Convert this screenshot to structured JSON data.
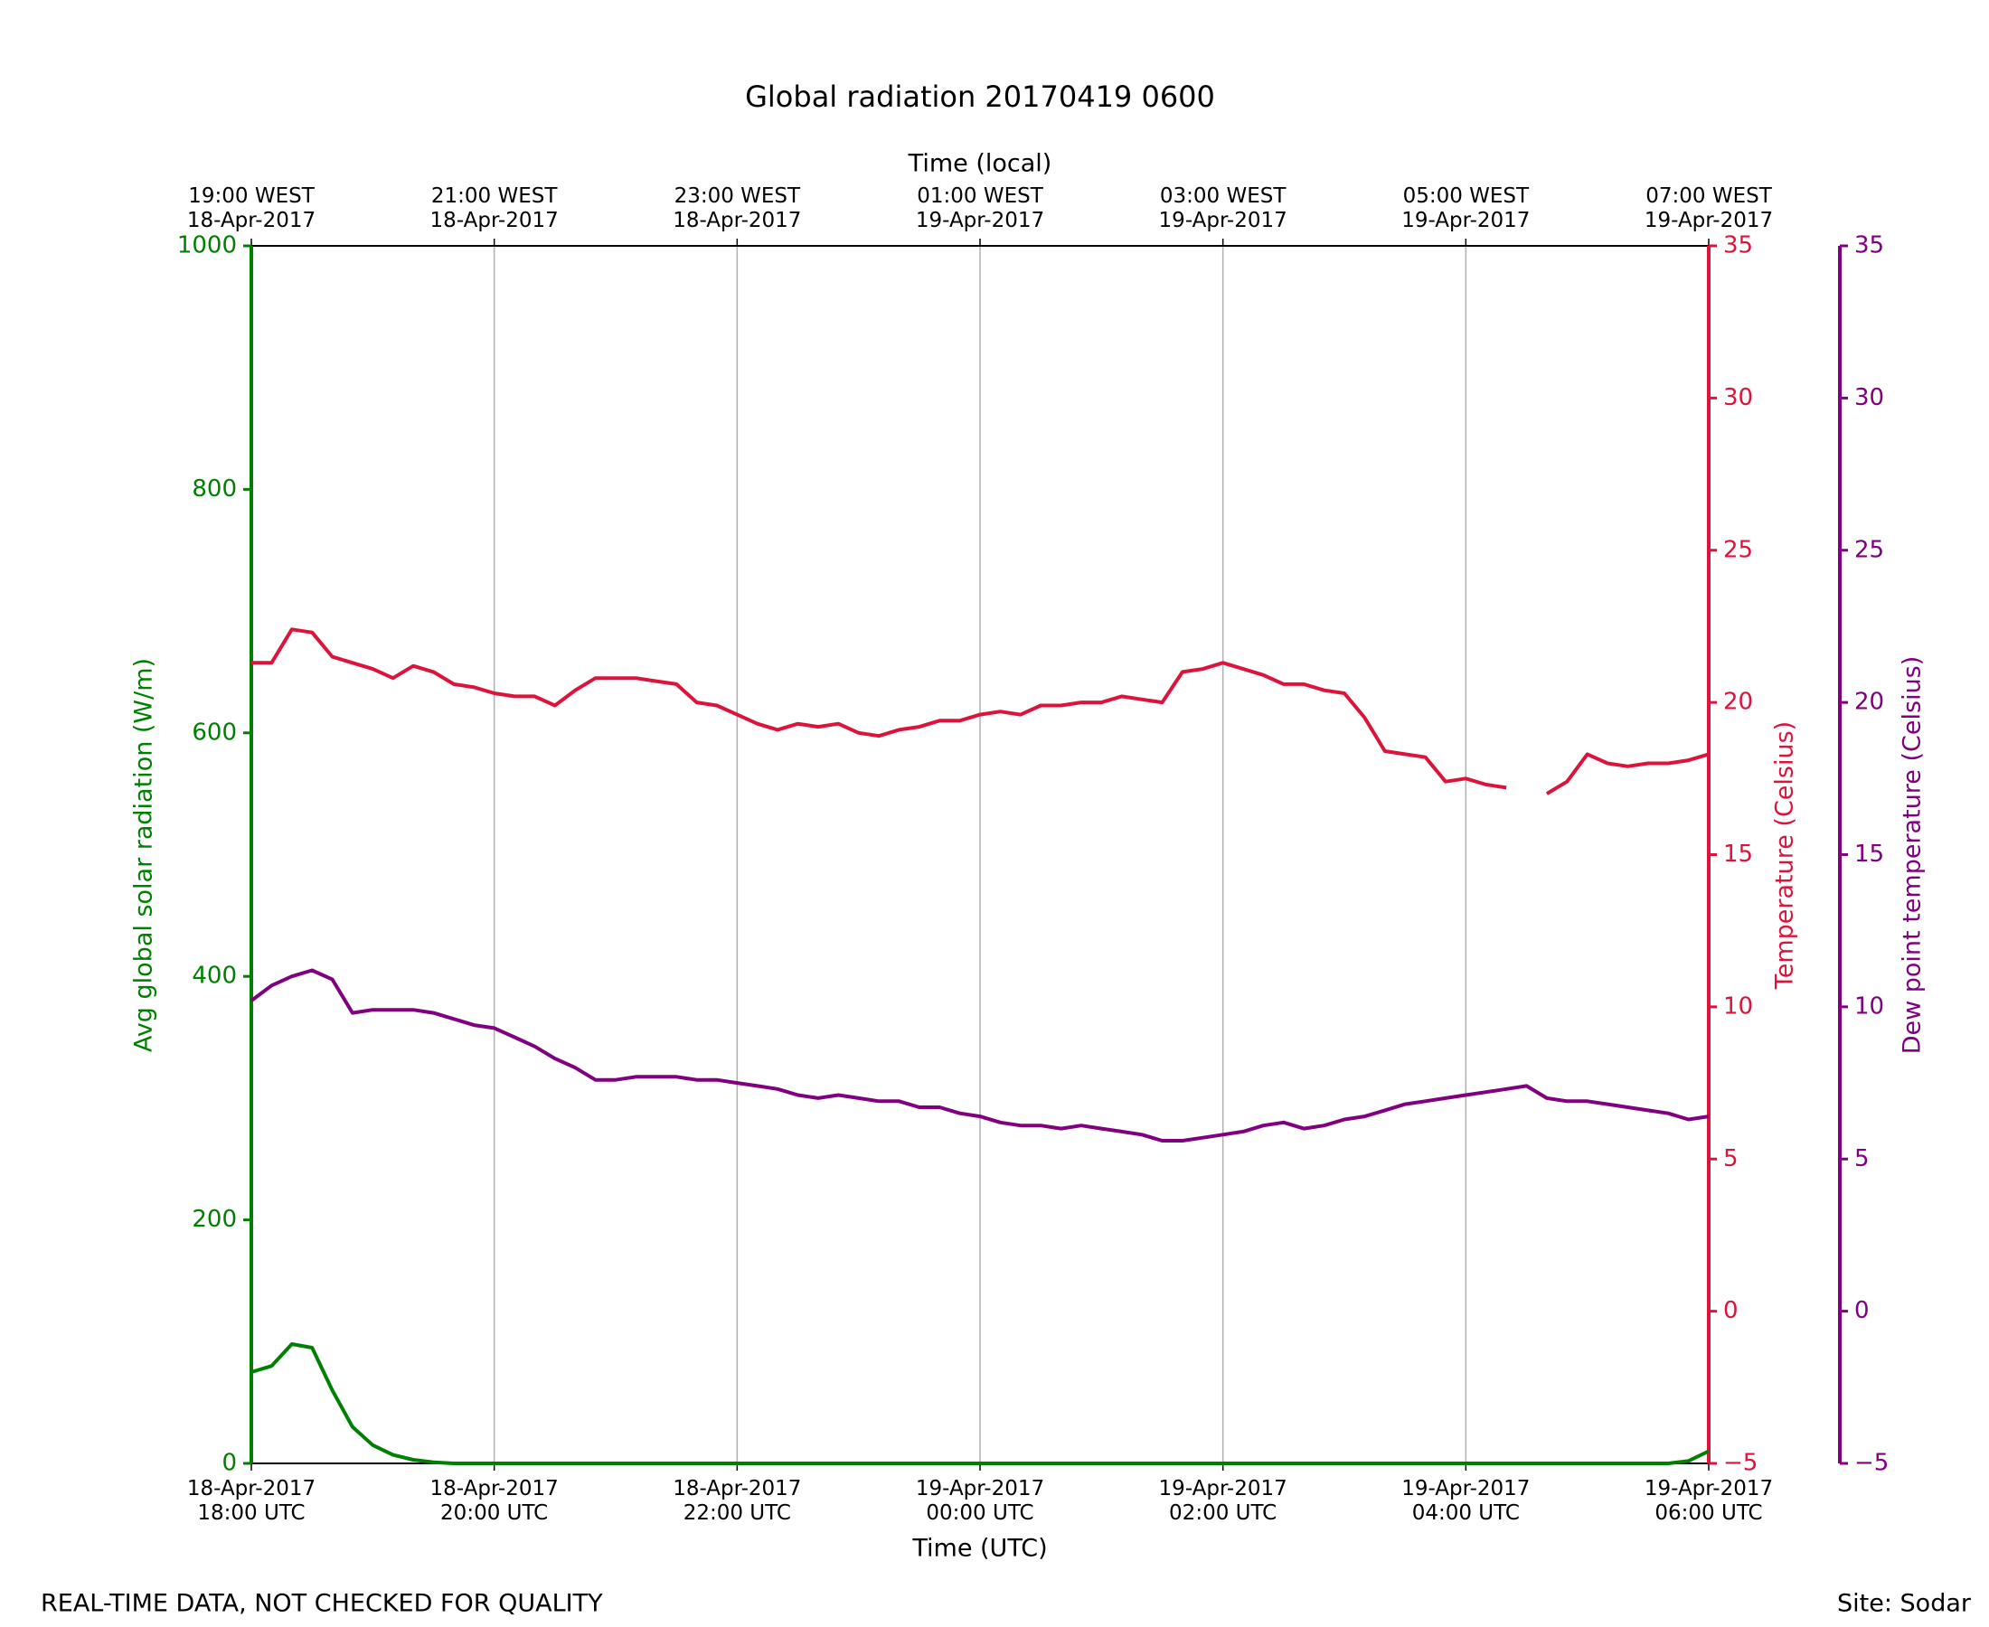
{
  "chart_data": {
    "type": "line",
    "title": "Global radiation 20170419 0600",
    "xlabel": "Time (UTC)",
    "x2label": "Time (local)",
    "ylabel": "Avg global solar radiation (W/m)",
    "y2label": "Temperature (Celsius)",
    "y3label": "Dew point temperature (Celsius)",
    "footer_left": "REAL-TIME DATA, NOT CHECKED FOR QUALITY",
    "footer_right": "Site: Sodar",
    "grid": true,
    "xlim": [
      "2017-04-18 18:00",
      "2017-04-19 06:00"
    ],
    "xticks": [
      {
        "value": "2017-04-18 18:00",
        "label": "18-Apr-2017\n18:00 UTC"
      },
      {
        "value": "2017-04-18 20:00",
        "label": "18-Apr-2017\n20:00 UTC"
      },
      {
        "value": "2017-04-18 22:00",
        "label": "18-Apr-2017\n22:00 UTC"
      },
      {
        "value": "2017-04-19 00:00",
        "label": "19-Apr-2017\n00:00 UTC"
      },
      {
        "value": "2017-04-19 02:00",
        "label": "19-Apr-2017\n02:00 UTC"
      },
      {
        "value": "2017-04-19 04:00",
        "label": "19-Apr-2017\n04:00 UTC"
      },
      {
        "value": "2017-04-19 06:00",
        "label": "19-Apr-2017\n06:00 UTC"
      }
    ],
    "x2ticks": [
      {
        "value": "2017-04-18 18:00",
        "label": "19:00 WEST\n18-Apr-2017"
      },
      {
        "value": "2017-04-18 20:00",
        "label": "21:00 WEST\n18-Apr-2017"
      },
      {
        "value": "2017-04-18 22:00",
        "label": "23:00 WEST\n18-Apr-2017"
      },
      {
        "value": "2017-04-19 00:00",
        "label": "01:00 WEST\n19-Apr-2017"
      },
      {
        "value": "2017-04-19 02:00",
        "label": "03:00 WEST\n19-Apr-2017"
      },
      {
        "value": "2017-04-19 04:00",
        "label": "05:00 WEST\n19-Apr-2017"
      },
      {
        "value": "2017-04-19 06:00",
        "label": "07:00 WEST\n19-Apr-2017"
      }
    ],
    "ylim": [
      0,
      1000
    ],
    "yticks": [
      0,
      200,
      400,
      600,
      800,
      1000
    ],
    "y2lim": [
      -5,
      35
    ],
    "y2ticks": [
      {
        "value": -5,
        "label": "−5"
      },
      0,
      5,
      10,
      15,
      20,
      25,
      30,
      35
    ],
    "y3lim": [
      -5,
      35
    ],
    "y3ticks": [
      {
        "value": -5,
        "label": "−5"
      },
      0,
      5,
      10,
      15,
      20,
      25,
      30,
      35
    ],
    "x": [
      "2017-04-18 18:00",
      "2017-04-18 18:10",
      "2017-04-18 18:20",
      "2017-04-18 18:30",
      "2017-04-18 18:40",
      "2017-04-18 18:50",
      "2017-04-18 19:00",
      "2017-04-18 19:10",
      "2017-04-18 19:20",
      "2017-04-18 19:30",
      "2017-04-18 19:40",
      "2017-04-18 19:50",
      "2017-04-18 20:00",
      "2017-04-18 20:10",
      "2017-04-18 20:20",
      "2017-04-18 20:30",
      "2017-04-18 20:40",
      "2017-04-18 20:50",
      "2017-04-18 21:00",
      "2017-04-18 21:10",
      "2017-04-18 21:20",
      "2017-04-18 21:30",
      "2017-04-18 21:40",
      "2017-04-18 21:50",
      "2017-04-18 22:00",
      "2017-04-18 22:10",
      "2017-04-18 22:20",
      "2017-04-18 22:30",
      "2017-04-18 22:40",
      "2017-04-18 22:50",
      "2017-04-18 23:00",
      "2017-04-18 23:10",
      "2017-04-18 23:20",
      "2017-04-18 23:30",
      "2017-04-18 23:40",
      "2017-04-18 23:50",
      "2017-04-19 00:00",
      "2017-04-19 00:10",
      "2017-04-19 00:20",
      "2017-04-19 00:30",
      "2017-04-19 00:40",
      "2017-04-19 00:50",
      "2017-04-19 01:00",
      "2017-04-19 01:10",
      "2017-04-19 01:20",
      "2017-04-19 01:30",
      "2017-04-19 01:40",
      "2017-04-19 01:50",
      "2017-04-19 02:00",
      "2017-04-19 02:10",
      "2017-04-19 02:20",
      "2017-04-19 02:30",
      "2017-04-19 02:40",
      "2017-04-19 02:50",
      "2017-04-19 03:00",
      "2017-04-19 03:10",
      "2017-04-19 03:20",
      "2017-04-19 03:30",
      "2017-04-19 03:40",
      "2017-04-19 03:50",
      "2017-04-19 04:00",
      "2017-04-19 04:10",
      "2017-04-19 04:20",
      "2017-04-19 04:30",
      "2017-04-19 04:40",
      "2017-04-19 04:50",
      "2017-04-19 05:00",
      "2017-04-19 05:10",
      "2017-04-19 05:20",
      "2017-04-19 05:30",
      "2017-04-19 05:40",
      "2017-04-19 05:50",
      "2017-04-19 06:00"
    ],
    "series": [
      {
        "name": "Avg global solar radiation",
        "color": "#008000",
        "axis": "y",
        "values": [
          75,
          80,
          98,
          95,
          60,
          30,
          15,
          7,
          3,
          1,
          0,
          0,
          0,
          0,
          0,
          0,
          0,
          0,
          0,
          0,
          0,
          0,
          0,
          0,
          0,
          0,
          0,
          0,
          0,
          0,
          0,
          0,
          0,
          0,
          0,
          0,
          0,
          0,
          0,
          0,
          0,
          0,
          0,
          0,
          0,
          0,
          0,
          0,
          0,
          0,
          0,
          0,
          0,
          0,
          0,
          0,
          0,
          0,
          0,
          0,
          0,
          0,
          0,
          0,
          0,
          0,
          0,
          0,
          0,
          0,
          0,
          2,
          10
        ]
      },
      {
        "name": "Temperature",
        "color": "#dc143c",
        "axis": "y2",
        "values": [
          21.3,
          21.3,
          22.4,
          22.3,
          21.5,
          21.3,
          21.1,
          20.8,
          21.2,
          21.0,
          20.6,
          20.5,
          20.3,
          20.2,
          20.2,
          19.9,
          20.4,
          20.8,
          20.8,
          20.8,
          20.7,
          20.6,
          20.0,
          19.9,
          19.6,
          19.3,
          19.1,
          19.3,
          19.2,
          19.3,
          19.0,
          18.9,
          19.1,
          19.2,
          19.4,
          19.4,
          19.6,
          19.7,
          19.6,
          19.9,
          19.9,
          20.0,
          20.0,
          20.2,
          20.1,
          20.0,
          21.0,
          21.1,
          21.3,
          21.1,
          20.9,
          20.6,
          20.6,
          20.4,
          20.3,
          19.5,
          18.4,
          18.3,
          18.2,
          17.4,
          17.5,
          17.3,
          17.2,
          null,
          17.0,
          17.4,
          18.3,
          18.0,
          17.9,
          18.0,
          18.0,
          18.1,
          18.3
        ]
      },
      {
        "name": "Dew point temperature",
        "color": "#800080",
        "axis": "y3",
        "values": [
          10.2,
          10.7,
          11.0,
          11.2,
          10.9,
          9.8,
          9.9,
          9.9,
          9.9,
          9.8,
          9.6,
          9.4,
          9.3,
          9.0,
          8.7,
          8.3,
          8.0,
          7.6,
          7.6,
          7.7,
          7.7,
          7.7,
          7.6,
          7.6,
          7.5,
          7.4,
          7.3,
          7.1,
          7.0,
          7.1,
          7.0,
          6.9,
          6.9,
          6.7,
          6.7,
          6.5,
          6.4,
          6.2,
          6.1,
          6.1,
          6.0,
          6.1,
          6.0,
          5.9,
          5.8,
          5.6,
          5.6,
          5.7,
          5.8,
          5.9,
          6.1,
          6.2,
          6.0,
          6.1,
          6.3,
          6.4,
          6.6,
          6.8,
          6.9,
          7.0,
          7.1,
          7.2,
          7.3,
          7.4,
          7.0,
          6.9,
          6.9,
          6.8,
          6.7,
          6.6,
          6.5,
          6.3,
          6.4
        ]
      }
    ]
  }
}
